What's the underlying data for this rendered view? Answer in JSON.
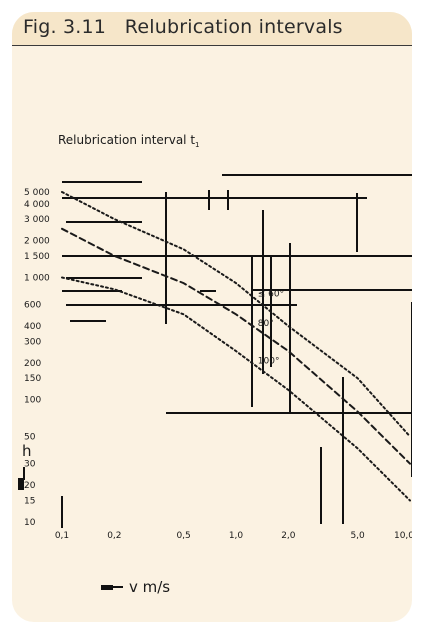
{
  "figure": {
    "number": "Fig. 3.11",
    "title": "Relubrication intervals"
  },
  "chart_data": {
    "type": "line",
    "subtitle": "Relubrication interval t",
    "subtitle_subscript": "1",
    "ylabel": "h",
    "xlabel": "v m/s",
    "xscale": "log",
    "yscale": "log",
    "xlim": [
      0.1,
      10.0
    ],
    "ylim": [
      10,
      5000
    ],
    "x_ticks": [
      0.1,
      0.2,
      0.5,
      1.0,
      2.0,
      5.0,
      10.0
    ],
    "x_tick_labels": [
      "0,1",
      "0,2",
      "0,5",
      "1,0",
      "2,0",
      "5,0",
      "10,0"
    ],
    "y_ticks": [
      10,
      15,
      20,
      30,
      50,
      100,
      150,
      200,
      300,
      400,
      600,
      1000,
      1500,
      2000,
      3000,
      4000,
      5000
    ],
    "y_tick_labels": [
      "10",
      "15",
      "20",
      "30",
      "50",
      "100",
      "150",
      "200",
      "300",
      "400",
      "600",
      "1 000",
      "1 500",
      "2 000",
      "3 000",
      "4 000",
      "5 000"
    ],
    "series": [
      {
        "name": "≤ 60°",
        "style": "dotted",
        "x": [
          0.1,
          0.2,
          0.5,
          1.0,
          2.0,
          5.0,
          10.0
        ],
        "y": [
          5000,
          3000,
          1700,
          900,
          400,
          150,
          50
        ]
      },
      {
        "name": "80°",
        "style": "dashed",
        "x": [
          0.1,
          0.2,
          0.5,
          1.0,
          2.0,
          5.0,
          10.0
        ],
        "y": [
          2500,
          1500,
          900,
          500,
          250,
          80,
          30
        ]
      },
      {
        "name": "100°",
        "style": "dotted",
        "x": [
          0.1,
          0.2,
          0.5,
          1.0,
          2.0,
          5.0,
          10.0
        ],
        "y": [
          1000,
          800,
          500,
          250,
          120,
          40,
          15
        ]
      }
    ]
  }
}
